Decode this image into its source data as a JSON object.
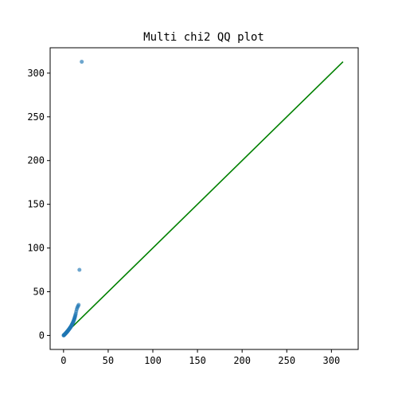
{
  "chart_data": {
    "type": "scatter",
    "title": "Multi chi2 QQ plot",
    "xlabel": "",
    "ylabel": "",
    "xlim": [
      -15,
      330
    ],
    "ylim": [
      -16,
      329
    ],
    "x_ticks": [
      0,
      50,
      100,
      150,
      200,
      250,
      300
    ],
    "y_ticks": [
      0,
      50,
      100,
      150,
      200,
      250,
      300
    ],
    "grid": false,
    "series": [
      {
        "kind": "points",
        "color": "#1f77b4",
        "points": [
          [
            0.1,
            0.1
          ],
          [
            0.3,
            0.2
          ],
          [
            0.5,
            0.4
          ],
          [
            0.8,
            0.7
          ],
          [
            1.0,
            1.0
          ],
          [
            1.3,
            1.2
          ],
          [
            1.6,
            1.5
          ],
          [
            1.9,
            1.9
          ],
          [
            2.2,
            2.2
          ],
          [
            2.5,
            2.5
          ],
          [
            2.8,
            2.9
          ],
          [
            3.1,
            3.2
          ],
          [
            3.4,
            3.5
          ],
          [
            3.7,
            3.9
          ],
          [
            4.0,
            4.3
          ],
          [
            4.3,
            4.6
          ],
          [
            4.6,
            5.0
          ],
          [
            4.9,
            5.4
          ],
          [
            5.2,
            5.8
          ],
          [
            5.5,
            6.2
          ],
          [
            5.8,
            6.6
          ],
          [
            6.1,
            7.0
          ],
          [
            6.4,
            7.4
          ],
          [
            6.7,
            7.9
          ],
          [
            7.0,
            8.3
          ],
          [
            7.3,
            8.7
          ],
          [
            7.6,
            9.1
          ],
          [
            7.9,
            9.6
          ],
          [
            8.2,
            10.1
          ],
          [
            8.5,
            10.6
          ],
          [
            8.8,
            11.2
          ],
          [
            9.1,
            11.8
          ],
          [
            9.4,
            12.4
          ],
          [
            9.7,
            13.0
          ],
          [
            10.0,
            13.6
          ],
          [
            10.3,
            14.2
          ],
          [
            10.6,
            14.9
          ],
          [
            10.9,
            15.6
          ],
          [
            11.2,
            16.4
          ],
          [
            11.5,
            17.2
          ],
          [
            11.8,
            18.1
          ],
          [
            12.1,
            19.0
          ],
          [
            12.4,
            20.0
          ],
          [
            12.7,
            21.0
          ],
          [
            13.0,
            22.0
          ],
          [
            13.3,
            23.5
          ],
          [
            13.7,
            25.0
          ],
          [
            14.2,
            27.5
          ],
          [
            14.8,
            30.0
          ],
          [
            15.5,
            32.0
          ],
          [
            16.2,
            33.5
          ],
          [
            16.9,
            35.0
          ],
          [
            17.8,
            75.0
          ],
          [
            20.4,
            313.0
          ]
        ]
      },
      {
        "kind": "line",
        "color": "#008000",
        "x": [
          0,
          313
        ],
        "y": [
          0,
          313
        ]
      }
    ]
  }
}
